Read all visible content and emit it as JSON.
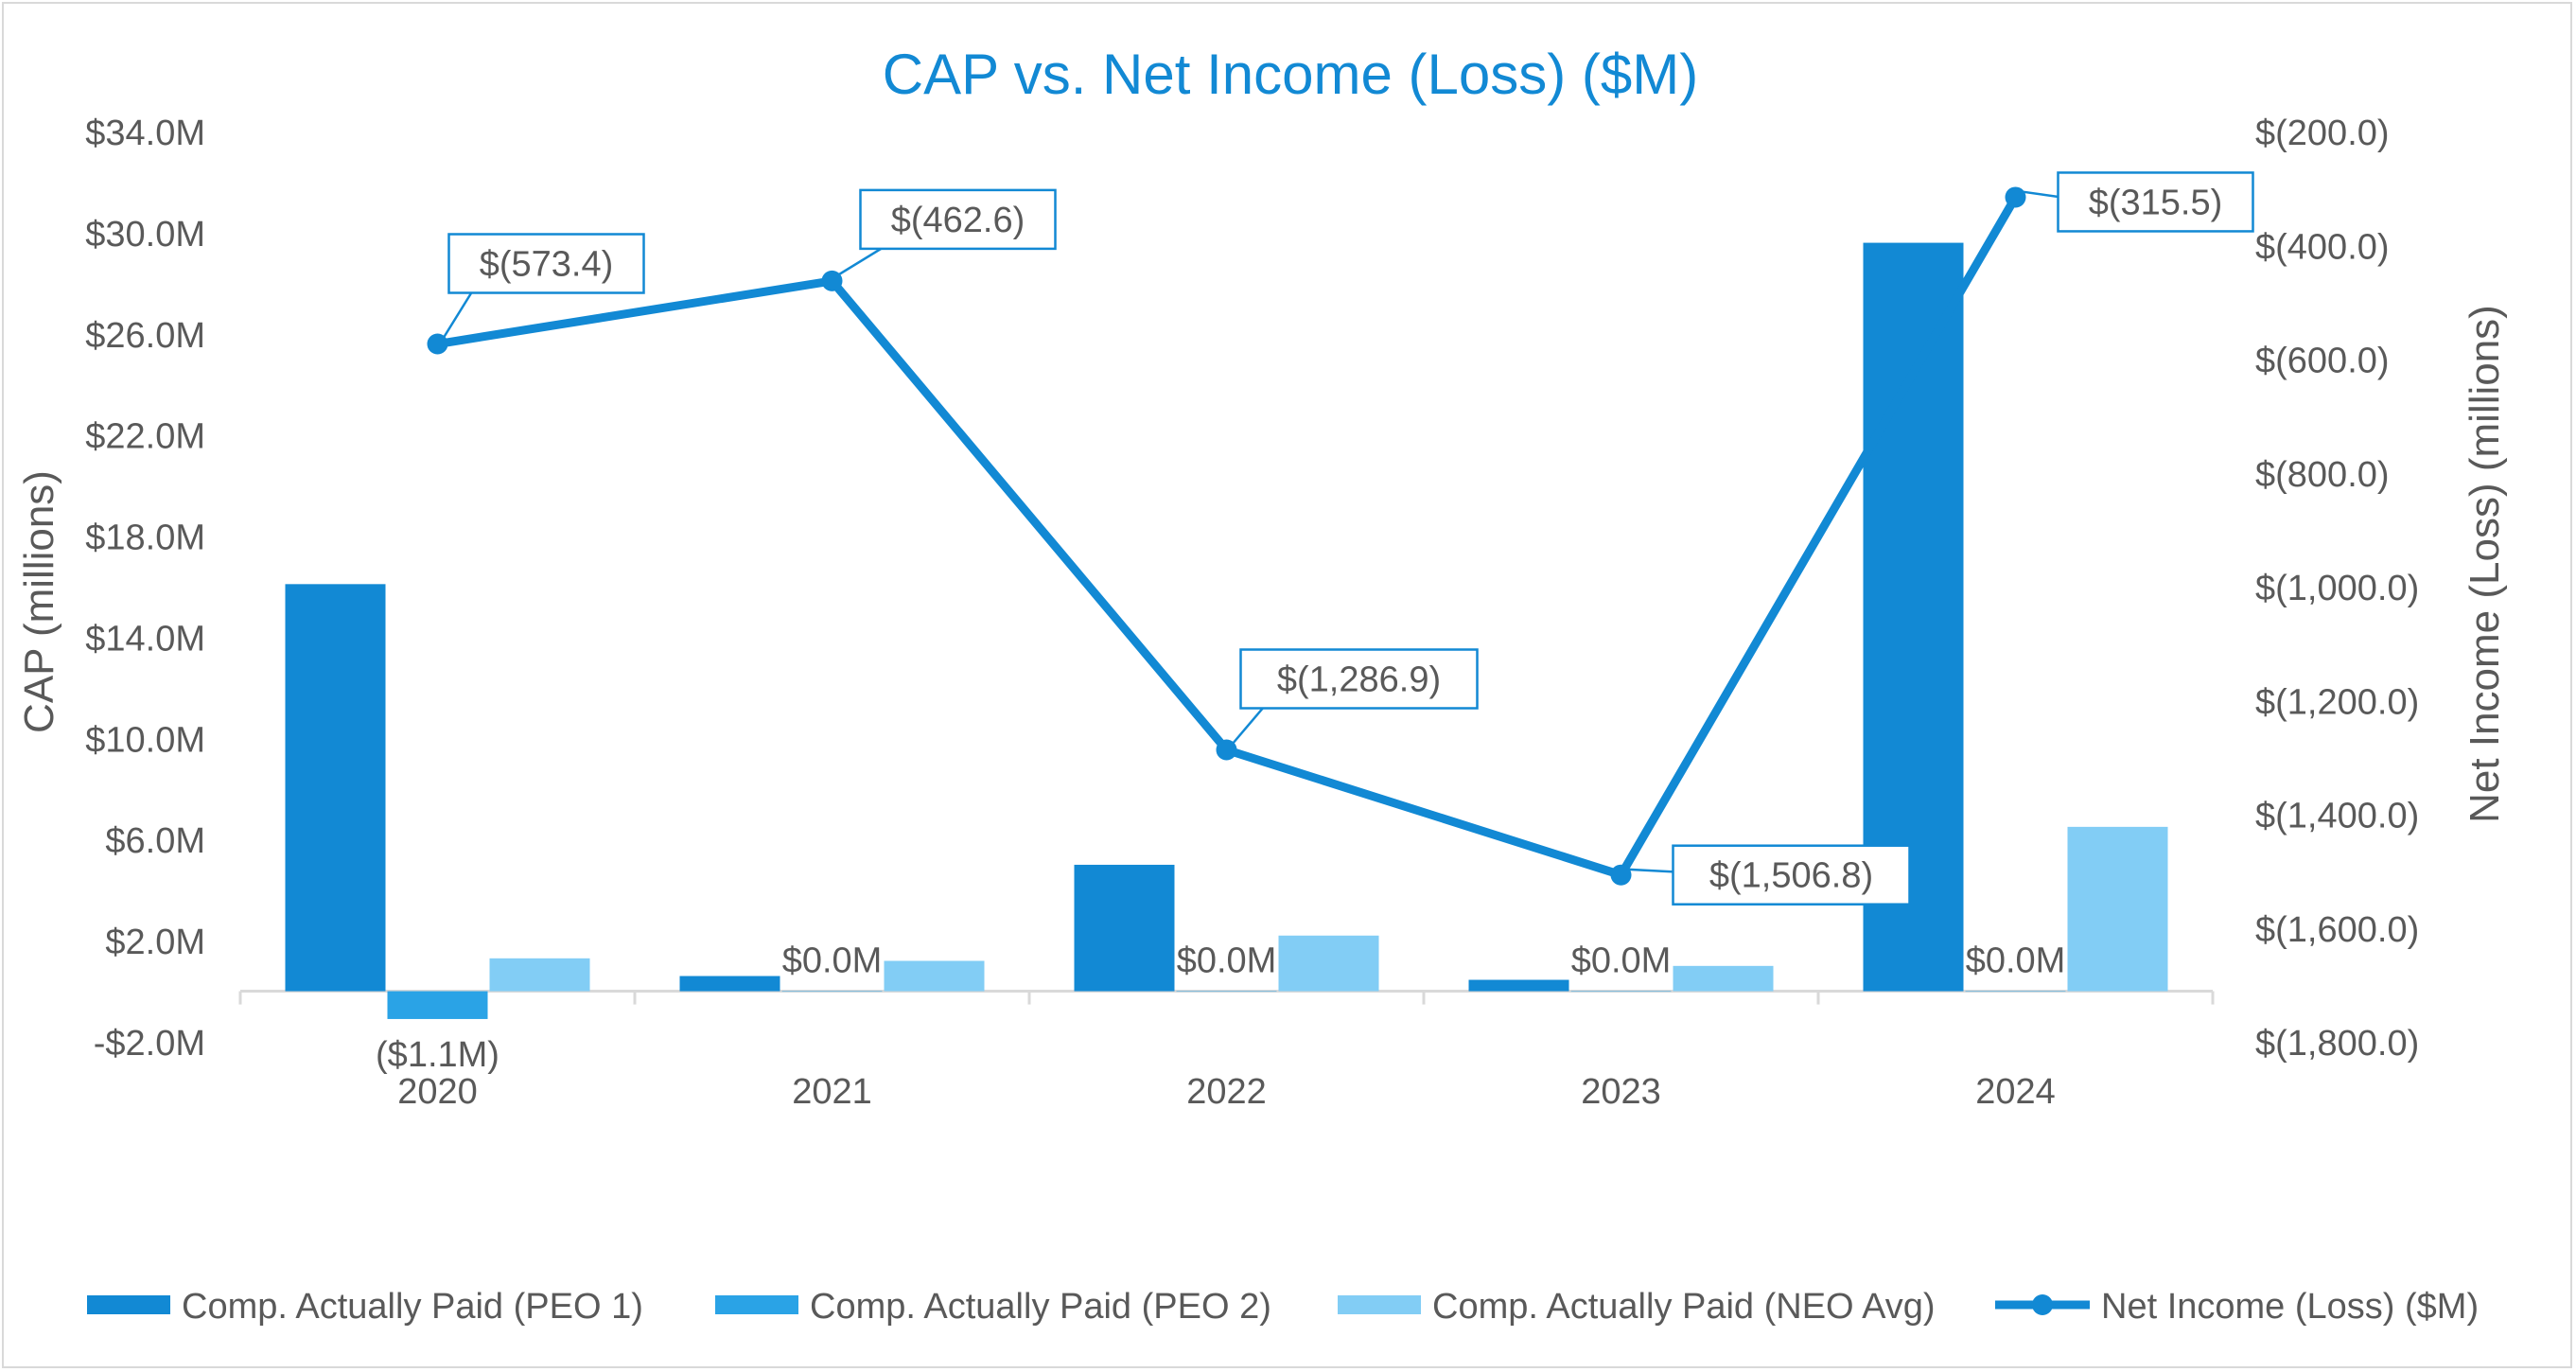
{
  "chart_data": {
    "type": "bar+line",
    "title": "CAP vs. Net Income (Loss) ($M)",
    "categories": [
      "2020",
      "2021",
      "2022",
      "2023",
      "2024"
    ],
    "left_axis": {
      "label": "CAP (millions)",
      "min": -2.0,
      "max": 34.0,
      "ticks": [
        -2,
        2,
        6,
        10,
        14,
        18,
        22,
        26,
        30,
        34
      ],
      "tick_labels": [
        "-$2.0M",
        "$2.0M",
        "$6.0M",
        "$10.0M",
        "$14.0M",
        "$18.0M",
        "$22.0M",
        "$26.0M",
        "$30.0M",
        "$34.0M"
      ]
    },
    "right_axis": {
      "label": "Net Income (Loss) (millions)",
      "min": -1800,
      "max": -200,
      "ticks": [
        -200,
        -400,
        -600,
        -800,
        -1000,
        -1200,
        -1400,
        -1600,
        -1800
      ],
      "tick_labels": [
        "$(200.0)",
        "$(400.0)",
        "$(600.0)",
        "$(800.0)",
        "$(1,000.0)",
        "$(1,200.0)",
        "$(1,400.0)",
        "$(1,600.0)",
        "$(1,800.0)"
      ]
    },
    "series": [
      {
        "name": "Comp. Actually Paid (PEO 1)",
        "type": "bar",
        "axis": "left",
        "color": "#1289d4",
        "values": [
          16.1,
          0.6,
          5.0,
          0.45,
          29.6
        ]
      },
      {
        "name": "Comp. Actually Paid (PEO 2)",
        "type": "bar",
        "axis": "left",
        "color": "#2aa3e6",
        "values": [
          -1.1,
          0.0,
          0.0,
          0.0,
          0.0
        ],
        "data_labels": [
          "($1.1M)",
          "$0.0M",
          "$0.0M",
          "$0.0M",
          "$0.0M"
        ]
      },
      {
        "name": "Comp. Actually Paid (NEO Avg)",
        "type": "bar",
        "axis": "left",
        "color": "#82cdf5",
        "values": [
          1.3,
          1.2,
          2.2,
          1.0,
          6.5
        ]
      },
      {
        "name": "Net Income (Loss) ($M)",
        "type": "line",
        "axis": "right",
        "color": "#1289d4",
        "values": [
          -573.4,
          -462.6,
          -1286.9,
          -1506.8,
          -315.5
        ],
        "data_labels": [
          "$(573.4)",
          "$(462.6)",
          "$(1,286.9)",
          "$(1,506.8)",
          "$(315.5)"
        ]
      }
    ]
  }
}
